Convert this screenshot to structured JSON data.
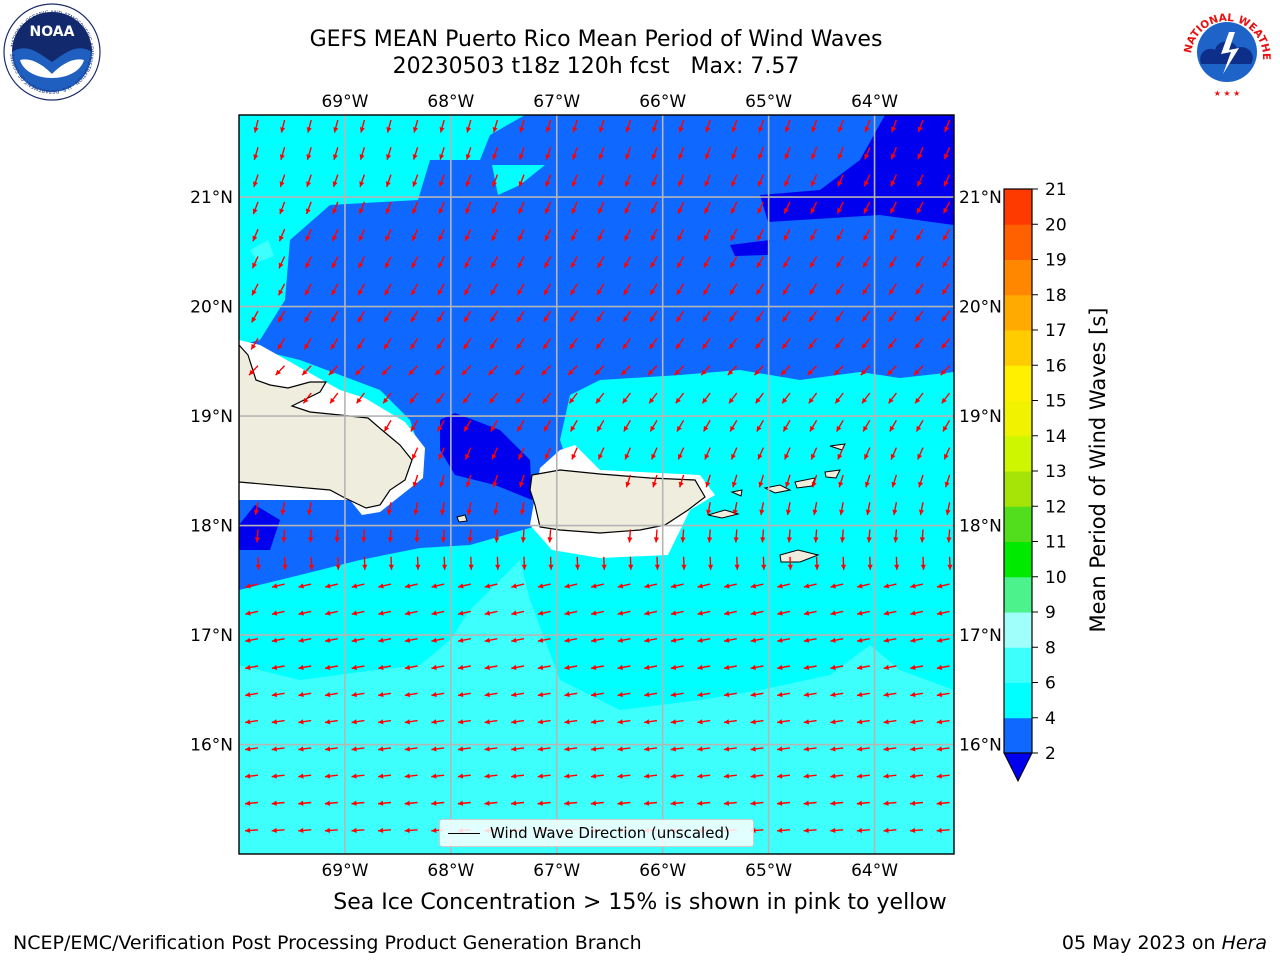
{
  "title": {
    "line1": "GEFS MEAN Puerto Rico Mean Period of Wind Waves",
    "line2": "20230503 t18z 120h fcst   Max: 7.57"
  },
  "map": {
    "lon_labels": [
      "69°W",
      "68°W",
      "67°W",
      "66°W",
      "65°W",
      "64°W"
    ],
    "lat_labels": [
      "21°N",
      "20°N",
      "19°N",
      "18°N",
      "17°N",
      "16°N"
    ],
    "lon_values": [
      -69,
      -68,
      -67,
      -66,
      -65,
      -64
    ],
    "lat_values": [
      21,
      20,
      19,
      18,
      17,
      16
    ],
    "lon_range": [
      -70,
      -63.25
    ],
    "lat_range": [
      15,
      21.75
    ],
    "arrow_color": "#ff0000",
    "land_color": "#efedde",
    "islands": [
      "Hispaniola",
      "Puerto Rico",
      "Virgin Islands",
      "St. Croix"
    ]
  },
  "colorbar": {
    "title": "Mean Period of Wind Waves [s]",
    "ticks": [
      "2",
      "4",
      "6",
      "8",
      "9",
      "10",
      "11",
      "12",
      "13",
      "14",
      "15",
      "16",
      "17",
      "18",
      "19",
      "20",
      "21"
    ],
    "colors": [
      "#0f68ff",
      "#00ffff",
      "#3dfffb",
      "#a0fffa",
      "#4cf28b",
      "#00ea00",
      "#52de1d",
      "#a6e307",
      "#cdf600",
      "#f0f200",
      "#fff000",
      "#ffcc00",
      "#ffaa00",
      "#ff8700",
      "#ff6000",
      "#ff3a00",
      "#ff0000"
    ],
    "under_color": "#0000ee"
  },
  "legend": {
    "label": "Wind Wave Direction (unscaled)"
  },
  "footer": {
    "note": "Sea Ice Concentration > 15% is shown in pink to yellow",
    "left": "NCEP/EMC/Verification Post Processing Product Generation Branch",
    "right_date": "05 May 2023 on",
    "right_host": "Hera"
  },
  "logos": {
    "noaa": "NOAA",
    "nws": "NATIONAL WEATHER SERVICE"
  }
}
